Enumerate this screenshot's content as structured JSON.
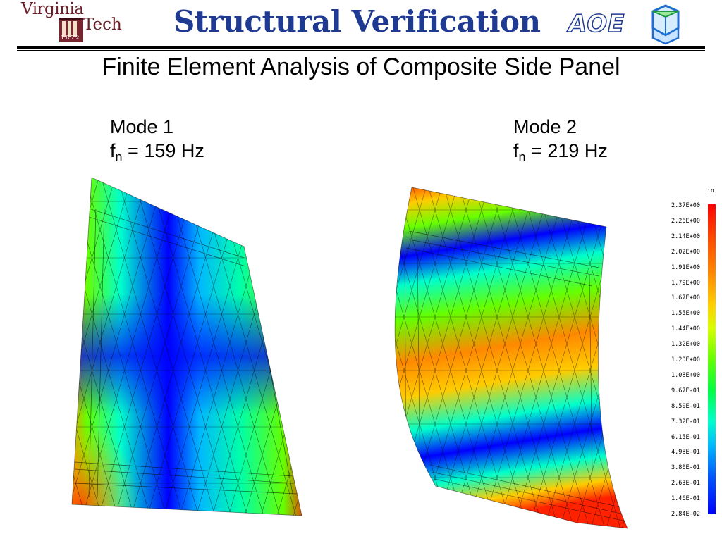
{
  "header": {
    "logo": {
      "line1": "Virginia",
      "line2": "Tech",
      "year": "1872"
    },
    "title": "Structural Verification",
    "aoe_mark": "AOE",
    "colors": {
      "title": "#1f3a93",
      "logo": "#6b1e28"
    }
  },
  "slide": {
    "subtitle": "Finite Element Analysis of Composite Side Panel"
  },
  "modes": [
    {
      "name": "Mode 1",
      "freq_symbol": "f",
      "freq_subscript": "n",
      "freq_value": "= 159 Hz"
    },
    {
      "name": "Mode 2",
      "freq_symbol": "f",
      "freq_subscript": "n",
      "freq_value": "= 219 Hz"
    }
  ],
  "legend": {
    "unit": "in",
    "ticks": [
      "2.37E+00",
      "2.26E+00",
      "2.14E+00",
      "2.02E+00",
      "1.91E+00",
      "1.79E+00",
      "1.67E+00",
      "1.55E+00",
      "1.44E+00",
      "1.32E+00",
      "1.20E+00",
      "1.08E+00",
      "9.67E-01",
      "8.50E-01",
      "7.32E-01",
      "6.15E-01",
      "4.98E-01",
      "3.80E-01",
      "2.63E-01",
      "1.46E-01",
      "2.84E-02"
    ],
    "colors": [
      "#ff0000",
      "#ff8800",
      "#ffcc00",
      "#66ff00",
      "#00ffcc",
      "#00b8ff",
      "#0000ff"
    ]
  }
}
